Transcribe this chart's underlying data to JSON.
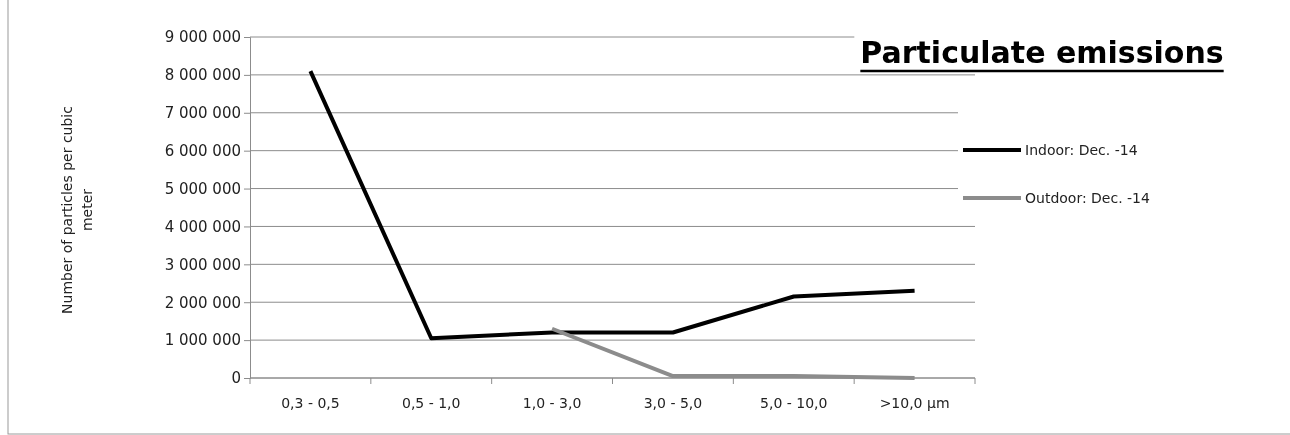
{
  "chart_data": {
    "type": "line",
    "title": "Particulate emissions",
    "ylabel": "Number of particles per cubic meter",
    "categories": [
      "0,3 - 0,5",
      "0,5 - 1,0",
      "1,0 - 3,0",
      "3,0 - 5,0",
      "5,0 - 10,0",
      ">10,0 µm"
    ],
    "series": [
      {
        "name": "Indoor: Dec. -14",
        "color": "#000000",
        "values": [
          8100000,
          1050000,
          1200000,
          1200000,
          2150000,
          2300000
        ]
      },
      {
        "name": "Outdoor: Dec. -14",
        "color": "#8c8c8c",
        "values": [
          null,
          null,
          1300000,
          50000,
          50000,
          0
        ]
      }
    ],
    "ylim": [
      0,
      9000000
    ],
    "yticks": [
      {
        "value": 0,
        "label": "0"
      },
      {
        "value": 1000000,
        "label": "1 000 000"
      },
      {
        "value": 2000000,
        "label": "2 000 000"
      },
      {
        "value": 3000000,
        "label": "3 000 000"
      },
      {
        "value": 4000000,
        "label": "4 000 000"
      },
      {
        "value": 5000000,
        "label": "5 000 000"
      },
      {
        "value": 6000000,
        "label": "6 000 000"
      },
      {
        "value": 7000000,
        "label": "7 000 000"
      },
      {
        "value": 8000000,
        "label": "8 000 000"
      },
      {
        "value": 9000000,
        "label": "9 000 000"
      }
    ],
    "grid": "y",
    "legend": "right",
    "marker": "none",
    "line_style": "solid"
  }
}
